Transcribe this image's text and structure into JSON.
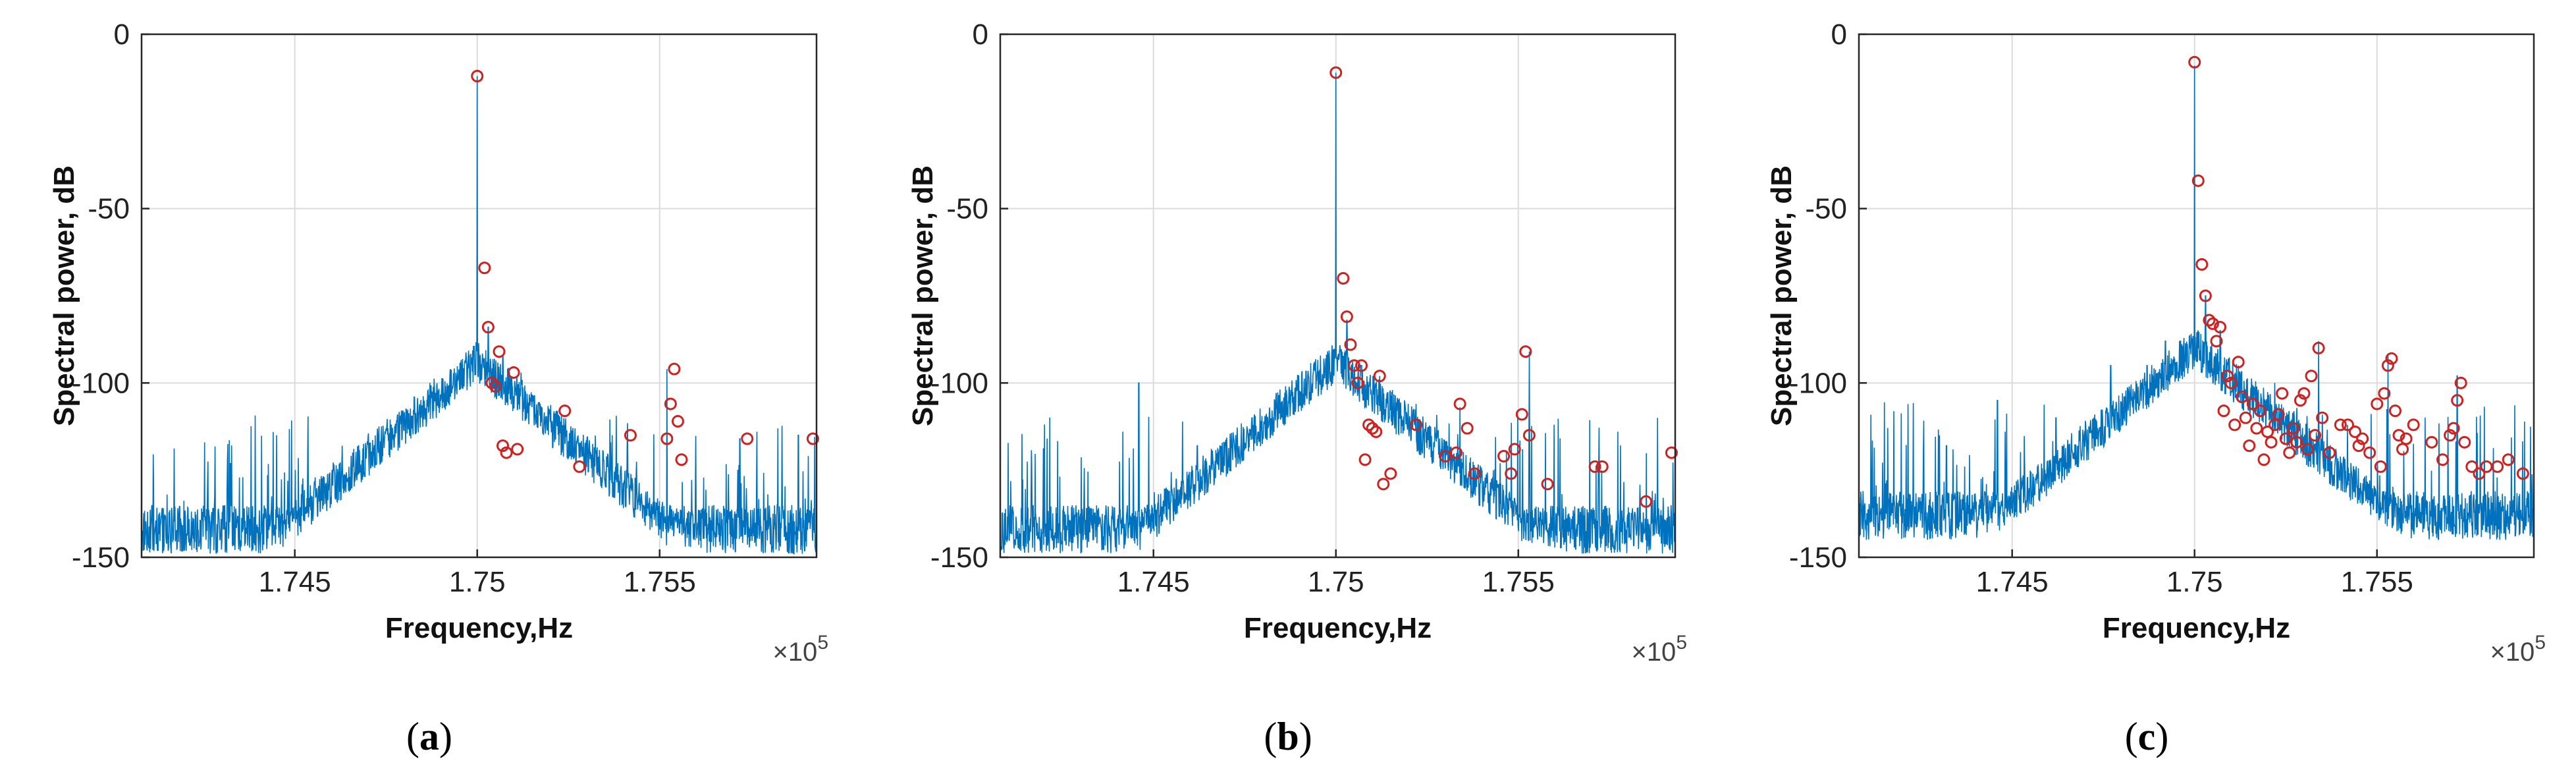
{
  "chart_data": [
    {
      "type": "line",
      "caption_letter": "a",
      "xlabel": "Frequency,Hz",
      "ylabel": "Spectral power, dB",
      "x_multiplier_label": "×10",
      "x_multiplier_exp": "5",
      "xlim": [
        1.7408,
        1.7593
      ],
      "ylim": [
        -150,
        0
      ],
      "xticks": [
        1.745,
        1.75,
        1.755
      ],
      "xtick_labels": [
        "1.745",
        "1.75",
        "1.755"
      ],
      "yticks": [
        0,
        -50,
        -100,
        -150
      ],
      "ytick_labels": [
        "0",
        "-50",
        "-100",
        "-150"
      ],
      "grid": true,
      "series": [
        {
          "style": "spectrum-line",
          "color": "#0072BD",
          "carrier_x": 1.75,
          "carrier_y": -12,
          "noise_floor": -142,
          "spurs_x": [
            1.7415,
            1.7445,
            1.7463,
            1.7478,
            1.7488,
            1.7492,
            1.7497,
            1.7503,
            1.7507,
            1.7512,
            1.7522,
            1.7537,
            1.7552,
            1.7572,
            1.7588
          ],
          "spurs_y": [
            -132,
            -115,
            -118,
            -112,
            -110,
            -108,
            -100,
            -84,
            -92,
            -97,
            -108,
            -115,
            -96,
            -116,
            -115
          ]
        },
        {
          "style": "peak-markers",
          "color": "#CC2222",
          "x": [
            1.75,
            1.7502,
            1.7503,
            1.7504,
            1.7505,
            1.7506,
            1.7507,
            1.7508,
            1.751,
            1.7511,
            1.7524,
            1.7528,
            1.7542,
            1.7552,
            1.7553,
            1.7554,
            1.7555,
            1.7556,
            1.7574,
            1.7592
          ],
          "y": [
            -12,
            -67,
            -84,
            -100,
            -101,
            -91,
            -118,
            -120,
            -97,
            -119,
            -108,
            -124,
            -115,
            -116,
            -106,
            -96,
            -111,
            -122,
            -116,
            -116
          ]
        }
      ]
    },
    {
      "type": "line",
      "caption_letter": "b",
      "xlabel": "Frequency,Hz",
      "ylabel": "Spectral power, dB",
      "x_multiplier_label": "×10",
      "x_multiplier_exp": "5",
      "xlim": [
        1.7408,
        1.7593
      ],
      "ylim": [
        -150,
        0
      ],
      "xticks": [
        1.745,
        1.75,
        1.755
      ],
      "xtick_labels": [
        "1.745",
        "1.75",
        "1.755"
      ],
      "yticks": [
        0,
        -50,
        -100,
        -150
      ],
      "ytick_labels": [
        "0",
        "-50",
        "-100",
        "-150"
      ],
      "grid": true,
      "series": [
        {
          "style": "spectrum-line",
          "color": "#0072BD",
          "carrier_x": 1.75,
          "carrier_y": -11,
          "noise_floor": -142,
          "spurs_x": [
            1.7446,
            1.7462,
            1.7477,
            1.7487,
            1.7492,
            1.7497,
            1.7503,
            1.7507,
            1.7512,
            1.7522,
            1.7534,
            1.7545,
            1.7553,
            1.7572
          ],
          "spurs_y": [
            -100,
            -118,
            -110,
            -120,
            -112,
            -96,
            -82,
            -95,
            -98,
            -106,
            -107,
            -123,
            -91,
            -124
          ]
        },
        {
          "style": "peak-markers",
          "color": "#CC2222",
          "x": [
            1.75,
            1.7502,
            1.7503,
            1.7504,
            1.7505,
            1.7506,
            1.7507,
            1.7508,
            1.7509,
            1.751,
            1.7511,
            1.7512,
            1.7513,
            1.7515,
            1.7522,
            1.753,
            1.7533,
            1.7534,
            1.7536,
            1.7538,
            1.7546,
            1.7548,
            1.7549,
            1.7551,
            1.7552,
            1.7553,
            1.7558,
            1.7571,
            1.7573,
            1.7585,
            1.7592
          ],
          "y": [
            -11,
            -70,
            -81,
            -89,
            -95,
            -100,
            -95,
            -122,
            -112,
            -113,
            -114,
            -98,
            -129,
            -126,
            -112,
            -121,
            -120,
            -106,
            -113,
            -126,
            -121,
            -126,
            -119,
            -109,
            -91,
            -115,
            -129,
            -124,
            -124,
            -134,
            -120
          ]
        }
      ]
    },
    {
      "type": "line",
      "caption_letter": "c",
      "xlabel": "Frequency,Hz",
      "ylabel": "Spectral power, dB",
      "x_multiplier_label": "×10",
      "x_multiplier_exp": "5",
      "xlim": [
        1.7408,
        1.7593
      ],
      "ylim": [
        -150,
        0
      ],
      "xticks": [
        1.745,
        1.75,
        1.755
      ],
      "xtick_labels": [
        "1.745",
        "1.75",
        "1.755"
      ],
      "yticks": [
        0,
        -50,
        -100,
        -150
      ],
      "ytick_labels": [
        "0",
        "-50",
        "-100",
        "-150"
      ],
      "grid": true,
      "series": [
        {
          "style": "spectrum-line",
          "color": "#0072BD",
          "carrier_x": 1.75,
          "carrier_y": -9,
          "noise_floor": -138,
          "spurs_x": [
            1.7415,
            1.7432,
            1.7446,
            1.7462,
            1.7477,
            1.7487,
            1.7492,
            1.7503,
            1.7507,
            1.7512,
            1.7522,
            1.7534,
            1.7553,
            1.7572
          ],
          "spurs_y": [
            -125,
            -118,
            -105,
            -110,
            -95,
            -95,
            -88,
            -75,
            -85,
            -95,
            -100,
            -88,
            -92,
            -98
          ]
        },
        {
          "style": "peak-markers",
          "color": "#CC2222",
          "x": [
            1.75,
            1.7501,
            1.7502,
            1.7503,
            1.7504,
            1.7505,
            1.7506,
            1.7507,
            1.7508,
            1.7509,
            1.751,
            1.7511,
            1.7512,
            1.7513,
            1.7514,
            1.7515,
            1.7516,
            1.7517,
            1.7518,
            1.7519,
            1.752,
            1.7521,
            1.7522,
            1.7523,
            1.7524,
            1.7525,
            1.7526,
            1.7527,
            1.7528,
            1.7529,
            1.753,
            1.7531,
            1.7532,
            1.7533,
            1.7534,
            1.7535,
            1.7537,
            1.754,
            1.7542,
            1.7544,
            1.7545,
            1.7546,
            1.7548,
            1.755,
            1.7551,
            1.7552,
            1.7553,
            1.7554,
            1.7555,
            1.7556,
            1.7557,
            1.7558,
            1.756,
            1.7565,
            1.7568,
            1.757,
            1.7571,
            1.7572,
            1.7573,
            1.7574,
            1.7576,
            1.7578,
            1.758,
            1.7583,
            1.7586,
            1.759
          ],
          "y": [
            -8,
            -42,
            -66,
            -75,
            -82,
            -83,
            -88,
            -84,
            -108,
            -98,
            -100,
            -112,
            -94,
            -104,
            -110,
            -118,
            -106,
            -113,
            -108,
            -122,
            -114,
            -117,
            -112,
            -109,
            -103,
            -116,
            -120,
            -113,
            -117,
            -105,
            -103,
            -119,
            -98,
            -115,
            -90,
            -110,
            -120,
            -112,
            -112,
            -114,
            -118,
            -116,
            -120,
            -106,
            -124,
            -103,
            -95,
            -93,
            -108,
            -115,
            -119,
            -116,
            -112,
            -117,
            -122,
            -115,
            -113,
            -105,
            -100,
            -117,
            -124,
            -126,
            -124,
            -124,
            -122,
            -126
          ]
        }
      ]
    }
  ]
}
